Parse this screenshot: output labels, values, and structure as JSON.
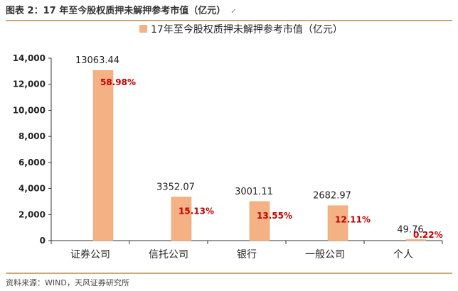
{
  "header": {
    "title": "图表 2：17 年至今股权质押未解押参考市值（亿元）",
    "tick": "✓"
  },
  "source": "资料来源：WIND，天风证券研究所",
  "colors": {
    "bar": "#f4b183",
    "bar_edge": "#e8a06a",
    "pct_label": "#c00000",
    "value_label": "#222222",
    "axis": "#333333"
  },
  "chart_data": {
    "type": "bar",
    "legend": "17年至今股权质押未解押参考市值（亿元）",
    "categories": [
      "证券公司",
      "信托公司",
      "银行",
      "一般公司",
      "个人"
    ],
    "values": [
      13063.44,
      3352.07,
      3001.11,
      2682.97,
      49.76
    ],
    "value_labels": [
      "13063.44",
      "3352.07",
      "3001.11",
      "2682.97",
      "49.76"
    ],
    "pct_labels": [
      "58.98%",
      "15.13%",
      "13.55%",
      "12.11%",
      "0.22%"
    ],
    "yticks": [
      "0",
      "2,000",
      "4,000",
      "6,000",
      "8,000",
      "10,000",
      "12,000",
      "14,000"
    ],
    "ylim": [
      0,
      14000
    ],
    "grid": false,
    "legend_position": "top"
  }
}
